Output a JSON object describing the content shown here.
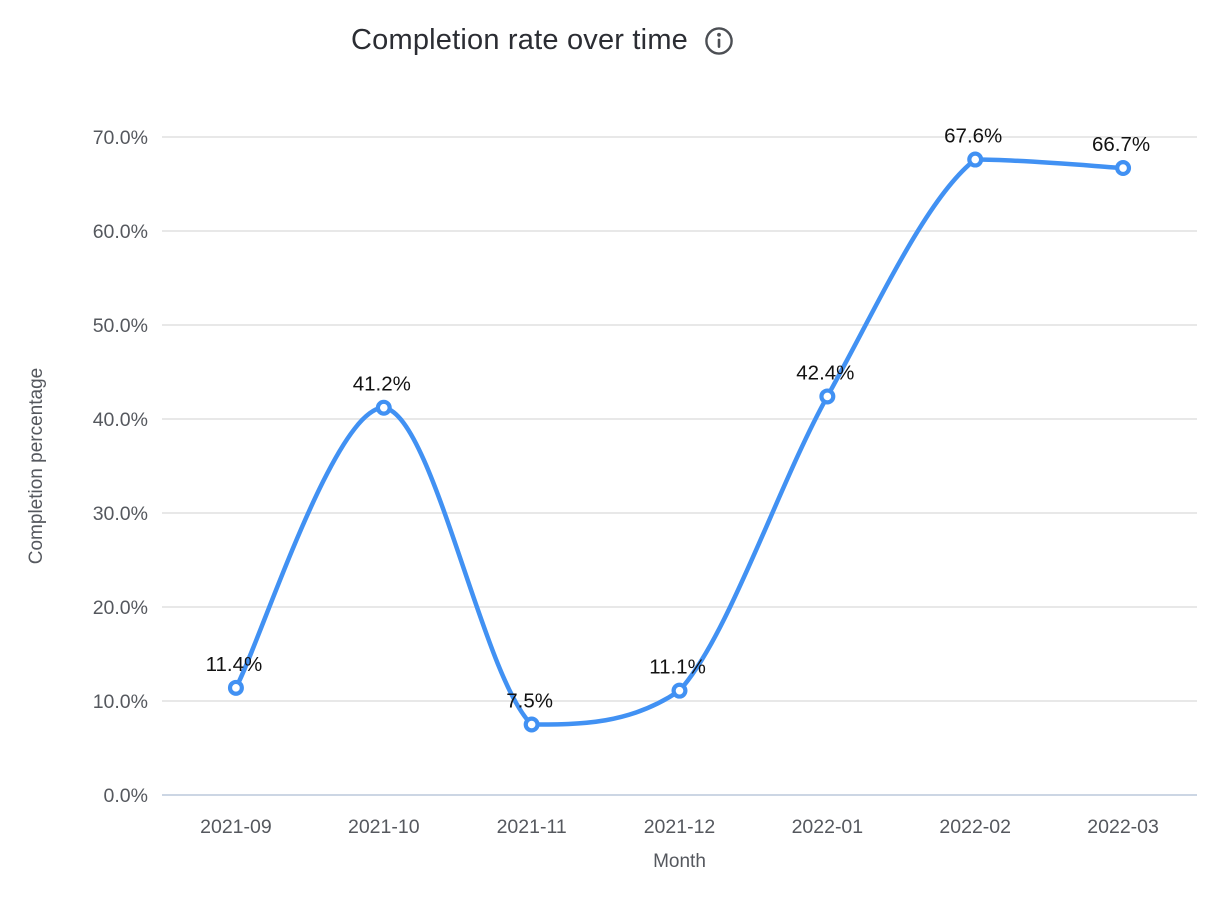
{
  "header": {
    "title": "Completion rate over time",
    "info_icon": "info-icon"
  },
  "chart_data": {
    "type": "line",
    "title": "Completion rate over time",
    "xlabel": "Month",
    "ylabel": "Completion percentage",
    "categories": [
      "2021-09",
      "2021-10",
      "2021-11",
      "2021-12",
      "2022-01",
      "2022-02",
      "2022-03"
    ],
    "series": [
      {
        "name": "Completion rate",
        "values": [
          11.4,
          41.2,
          7.5,
          11.1,
          42.4,
          67.6,
          66.7
        ]
      }
    ],
    "point_labels": [
      "11.4%",
      "41.2%",
      "7.5%",
      "11.1%",
      "42.4%",
      "67.6%",
      "66.7%"
    ],
    "ylim": [
      0,
      70
    ],
    "y_ticks": [
      0,
      10,
      20,
      30,
      40,
      50,
      60,
      70
    ],
    "y_tick_labels": [
      "0.0%",
      "10.0%",
      "20.0%",
      "30.0%",
      "40.0%",
      "50.0%",
      "60.0%",
      "70.0%"
    ],
    "grid": true,
    "smooth": true,
    "legend_position": "none",
    "colors": {
      "line": "#4191f3",
      "marker_fill": "#ffffff",
      "grid_line": "#e8e8e8",
      "zero_line": "#ccd6e4",
      "tick_text": "#55585e",
      "data_label": "#121212",
      "title_text": "#2b2d33",
      "icon": "#4c4f54"
    }
  }
}
